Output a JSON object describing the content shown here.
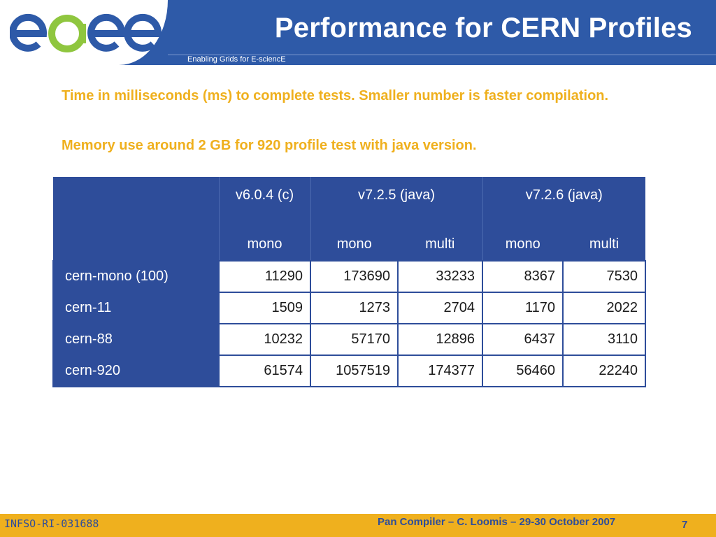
{
  "header": {
    "logo_text": "egee",
    "title": "Performance for CERN Profiles",
    "subtitle": "Enabling Grids for E-sciencE"
  },
  "body": {
    "paragraph1": "Time in milliseconds (ms) to complete tests.  Smaller number is faster compilation.",
    "paragraph2": "Memory use around 2 GB for 920 profile test with java version."
  },
  "table": {
    "versions": [
      "v6.0.4 (c)",
      "v7.2.5 (java)",
      "v7.2.6 (java)"
    ],
    "modes": [
      "mono",
      "mono",
      "multi",
      "mono",
      "multi"
    ],
    "rows": [
      {
        "label": "cern-mono (100)",
        "values": [
          "11290",
          "173690",
          "33233",
          "8367",
          "7530"
        ]
      },
      {
        "label": "cern-11",
        "values": [
          "1509",
          "1273",
          "2704",
          "1170",
          "2022"
        ]
      },
      {
        "label": "cern-88",
        "values": [
          "10232",
          "57170",
          "12896",
          "6437",
          "3110"
        ]
      },
      {
        "label": "cern-920",
        "values": [
          "61574",
          "1057519",
          "174377",
          "56460",
          "22240"
        ]
      }
    ]
  },
  "footer": {
    "left": "INFSO-RI-031688",
    "center": "Pan Compiler  – C. Loomis – 29-30 October 2007",
    "page": "7"
  },
  "colors": {
    "brand_blue": "#2e5aa8",
    "table_blue": "#2e4d9a",
    "accent_gold": "#efb01e",
    "logo_green": "#8fc63f"
  }
}
